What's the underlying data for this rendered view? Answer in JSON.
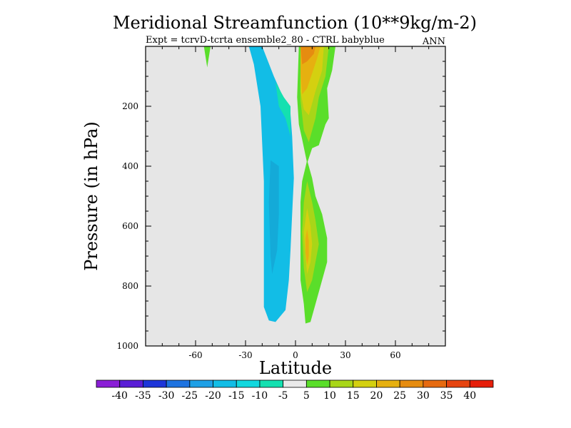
{
  "chart_data": {
    "type": "contour",
    "title": "Meridional Streamfunction (10**9kg/m-2)",
    "subtitle_left": "Expt = tcrvD-tcrta ensemble2_80 - CTRL babyblue",
    "subtitle_right": "ANN",
    "xlabel": "Latitude",
    "ylabel": "Pressure (in hPa)",
    "xlim": [
      -90,
      90
    ],
    "ylim": [
      0,
      1000
    ],
    "y_inverted": true,
    "x_ticks": [
      {
        "value": -60,
        "label": "-60"
      },
      {
        "value": -30,
        "label": "-30"
      },
      {
        "value": 0,
        "label": "0"
      },
      {
        "value": 30,
        "label": "30"
      },
      {
        "value": 60,
        "label": "60"
      }
    ],
    "y_ticks": [
      {
        "value": 200,
        "label": "200"
      },
      {
        "value": 400,
        "label": "400"
      },
      {
        "value": 600,
        "label": "600"
      },
      {
        "value": 800,
        "label": "800"
      },
      {
        "value": 1000,
        "label": "1000"
      }
    ],
    "background_color": "#e6e6e6",
    "colorbar": {
      "colors": [
        "#8a1ed6",
        "#5a1ed6",
        "#1e36d9",
        "#1e73e0",
        "#1ea0e6",
        "#12bde6",
        "#12d8de",
        "#14e0b0",
        "#e9e9e9",
        "#5ade2a",
        "#a8d618",
        "#d4d010",
        "#e6b010",
        "#e68c10",
        "#e66a10",
        "#e64410",
        "#e61e0a"
      ],
      "labels": [
        "-40",
        "-35",
        "-30",
        "-25",
        "-20",
        "-15",
        "-10",
        "-5",
        "5",
        "10",
        "15",
        "20",
        "25",
        "30",
        "35",
        "40"
      ]
    },
    "regions": [
      {
        "name": "south-cell-minus10",
        "level": -10,
        "color": "#12bde6",
        "points": [
          [
            -28,
            0
          ],
          [
            -20,
            0
          ],
          [
            -13,
            100
          ],
          [
            -3,
            225
          ],
          [
            -2,
            300
          ],
          [
            -1,
            440
          ],
          [
            -2,
            560
          ],
          [
            -3,
            680
          ],
          [
            -4,
            780
          ],
          [
            -6,
            880
          ],
          [
            -9,
            900
          ],
          [
            -12,
            920
          ],
          [
            -16,
            915
          ],
          [
            -19,
            870
          ],
          [
            -19,
            680
          ],
          [
            -19,
            450
          ],
          [
            -21,
            200
          ],
          [
            -25,
            60
          ]
        ]
      },
      {
        "name": "south-cell-minus15",
        "level": -15,
        "color": "#14aad8",
        "points": [
          [
            -15,
            380
          ],
          [
            -10,
            400
          ],
          [
            -10,
            560
          ],
          [
            -11,
            680
          ],
          [
            -14,
            760
          ],
          [
            -15,
            700
          ],
          [
            -16,
            520
          ]
        ]
      },
      {
        "name": "south-cell-minus5-upper",
        "level": -5,
        "color": "#14e0b0",
        "points": [
          [
            -12,
            120
          ],
          [
            -7,
            170
          ],
          [
            -3,
            200
          ],
          [
            -3,
            300
          ],
          [
            -6,
            240
          ],
          [
            -10,
            200
          ]
        ]
      },
      {
        "name": "south-small-minus5",
        "level": -5,
        "color": "#5ade2a",
        "points": [
          [
            -55,
            0
          ],
          [
            -51,
            0
          ],
          [
            -53,
            70
          ]
        ]
      },
      {
        "name": "north-upper-10",
        "level": 10,
        "color": "#5ade2a",
        "points": [
          [
            2,
            0
          ],
          [
            24,
            0
          ],
          [
            22,
            80
          ],
          [
            19,
            140
          ],
          [
            20,
            240
          ],
          [
            18,
            260
          ],
          [
            14,
            330
          ],
          [
            10,
            340
          ],
          [
            7,
            390
          ],
          [
            4,
            310
          ],
          [
            2,
            260
          ],
          [
            1,
            170
          ]
        ]
      },
      {
        "name": "north-upper-15",
        "level": 15,
        "color": "#a8d618",
        "points": [
          [
            3,
            0
          ],
          [
            20,
            0
          ],
          [
            18,
            100
          ],
          [
            14,
            170
          ],
          [
            12,
            240
          ],
          [
            8,
            320
          ],
          [
            5,
            280
          ],
          [
            3,
            180
          ]
        ]
      },
      {
        "name": "north-upper-20",
        "level": 20,
        "color": "#d4d010",
        "points": [
          [
            3,
            0
          ],
          [
            17,
            0
          ],
          [
            16,
            80
          ],
          [
            12,
            150
          ],
          [
            8,
            230
          ],
          [
            5,
            210
          ],
          [
            3,
            150
          ]
        ]
      },
      {
        "name": "north-upper-25",
        "level": 25,
        "color": "#e6b010",
        "points": [
          [
            3,
            0
          ],
          [
            15,
            0
          ],
          [
            13,
            40
          ],
          [
            10,
            90
          ],
          [
            7,
            140
          ],
          [
            4,
            160
          ],
          [
            3,
            90
          ]
        ]
      },
      {
        "name": "north-upper-30",
        "level": 30,
        "color": "#e68c10",
        "points": [
          [
            3,
            0
          ],
          [
            12,
            0
          ],
          [
            11,
            25
          ],
          [
            7,
            50
          ],
          [
            4,
            60
          ]
        ]
      },
      {
        "name": "north-lower-10",
        "level": 10,
        "color": "#5ade2a",
        "points": [
          [
            7,
            380
          ],
          [
            10,
            440
          ],
          [
            12,
            500
          ],
          [
            16,
            560
          ],
          [
            19,
            640
          ],
          [
            19,
            720
          ],
          [
            15,
            800
          ],
          [
            12,
            860
          ],
          [
            9,
            920
          ],
          [
            6,
            925
          ],
          [
            5,
            860
          ],
          [
            3,
            780
          ],
          [
            3,
            660
          ],
          [
            3,
            520
          ],
          [
            4,
            450
          ]
        ]
      },
      {
        "name": "north-lower-15",
        "level": 15,
        "color": "#a8d618",
        "points": [
          [
            7,
            450
          ],
          [
            10,
            520
          ],
          [
            12,
            580
          ],
          [
            14,
            660
          ],
          [
            12,
            720
          ],
          [
            10,
            780
          ],
          [
            7,
            820
          ],
          [
            5,
            740
          ],
          [
            4,
            620
          ],
          [
            5,
            520
          ]
        ]
      },
      {
        "name": "north-lower-20",
        "level": 20,
        "color": "#d4d010",
        "points": [
          [
            7,
            540
          ],
          [
            9,
            600
          ],
          [
            10,
            660
          ],
          [
            9,
            720
          ],
          [
            7,
            760
          ],
          [
            6,
            700
          ],
          [
            5,
            620
          ]
        ]
      },
      {
        "name": "north-lower-25",
        "level": 25,
        "color": "#e6b010",
        "points": [
          [
            7,
            610
          ],
          [
            8,
            650
          ],
          [
            8,
            700
          ],
          [
            7,
            730
          ],
          [
            6,
            690
          ],
          [
            6,
            640
          ]
        ]
      }
    ]
  }
}
